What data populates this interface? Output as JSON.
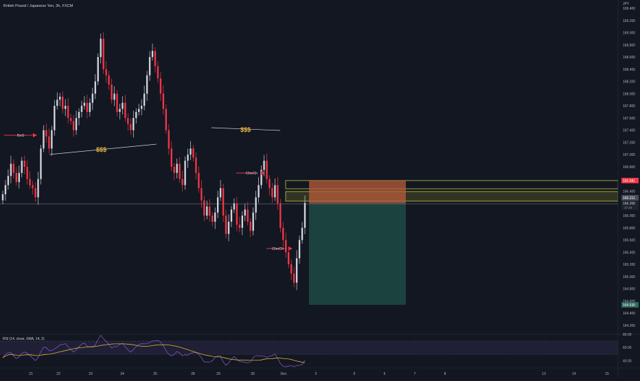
{
  "header": {
    "title": "British Pound / Japanese Yen, 2h, FXCM"
  },
  "price_axis": {
    "currency": "JPY",
    "ticks": [
      "169.400",
      "169.200",
      "169.000",
      "168.800",
      "168.600",
      "168.400",
      "168.200",
      "168.000",
      "167.800",
      "167.600",
      "167.400",
      "167.200",
      "167.000",
      "166.800",
      "166.600",
      "166.400",
      "166.200",
      "166.000",
      "165.800",
      "165.600",
      "165.400",
      "165.200",
      "165.000",
      "164.800",
      "164.600",
      "164.400",
      "164.200"
    ]
  },
  "price_badges": {
    "stop": "166.581",
    "entry": "166.211",
    "last": "166.206",
    "countdown": "17:25",
    "target": "164.530"
  },
  "rsi": {
    "label": "RSI (14, close, SMA, 14, 2)",
    "ticks": [
      "80.00",
      "60.00",
      "40.00"
    ]
  },
  "time_axis": {
    "ticks": [
      "21",
      "22",
      "23",
      "24",
      "25",
      "28",
      "29",
      "30",
      "Dec",
      "2",
      "5",
      "6",
      "7",
      "8",
      "13",
      "14",
      "15"
    ]
  },
  "annotations": {
    "bos": "BoS",
    "liquidity_low": "$$$",
    "liquidity_high": "$$$",
    "choch_upper": "ChoCh",
    "choch_lower": "ChoCh"
  },
  "colors": {
    "background": "#131722",
    "bull_candle": "#d1d4dc",
    "bear_candle": "#f23645",
    "stop_zone": "#b85c3c",
    "target_zone": "#1f4a44",
    "zone_outline": "#c8c83a",
    "label_gold": "#e8b33a",
    "rsi_line": "#7e57c2",
    "rsi_sma": "#d7b43a"
  },
  "chart_data": {
    "type": "candlestick",
    "title": "British Pound / Japanese Yen, 2h, FXCM",
    "x_labels": [
      "21",
      "22",
      "23",
      "24",
      "25",
      "28",
      "29",
      "30",
      "Dec"
    ],
    "ylim": [
      164.2,
      169.4
    ],
    "closes": [
      166.35,
      166.5,
      166.65,
      166.85,
      166.7,
      166.55,
      166.7,
      166.9,
      166.8,
      166.6,
      166.5,
      166.45,
      166.3,
      166.6,
      167.1,
      167.4,
      167.3,
      167.1,
      167.4,
      167.8,
      167.9,
      167.95,
      167.75,
      167.8,
      167.6,
      167.55,
      167.4,
      167.6,
      167.7,
      167.8,
      167.85,
      167.7,
      167.85,
      168.0,
      168.2,
      168.6,
      168.9,
      168.4,
      168.3,
      168.15,
      167.9,
      168.0,
      167.7,
      167.75,
      167.85,
      167.6,
      167.5,
      167.4,
      167.6,
      167.7,
      167.75,
      167.8,
      168.0,
      168.3,
      168.6,
      168.7,
      168.45,
      168.25,
      168.0,
      167.75,
      167.4,
      167.1,
      166.8,
      166.7,
      166.85,
      166.6,
      166.5,
      166.9,
      167.0,
      167.1,
      166.95,
      166.7,
      166.45,
      166.25,
      166.0,
      166.15,
      166.0,
      165.9,
      166.05,
      166.3,
      166.45,
      166.0,
      165.7,
      165.9,
      166.1,
      166.2,
      165.85,
      165.8,
      166.0,
      166.1,
      165.9,
      165.75,
      166.05,
      166.3,
      166.5,
      166.75,
      166.9,
      166.6,
      166.45,
      166.3,
      166.5,
      166.2,
      165.8,
      165.6,
      165.4,
      165.2,
      165.05,
      164.9,
      165.3,
      165.6,
      165.8,
      166.21
    ],
    "stop_loss": 166.581,
    "entry": 166.211,
    "take_profit": 164.53,
    "rsi_ylim": [
      30,
      80
    ]
  }
}
